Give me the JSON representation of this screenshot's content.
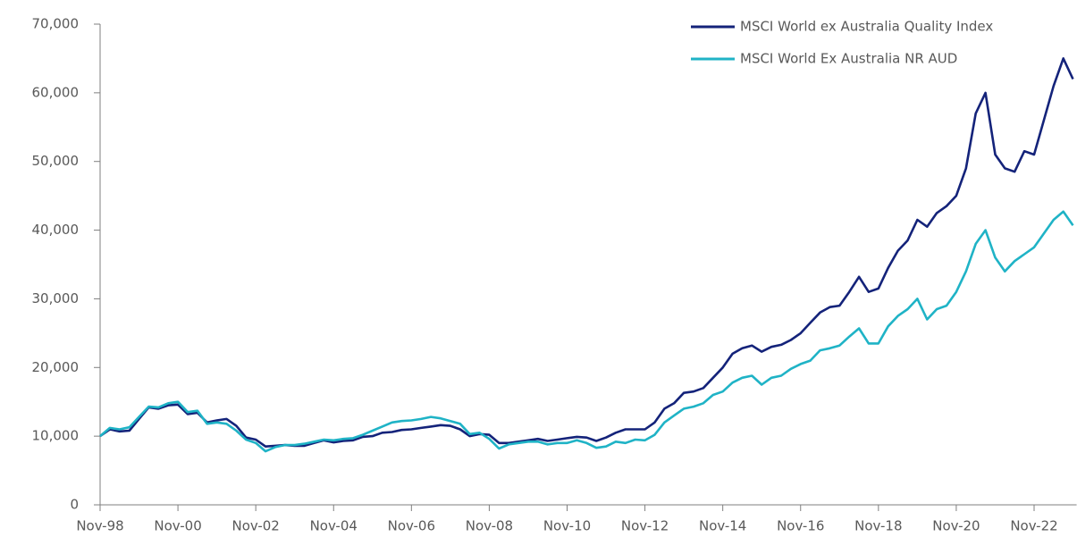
{
  "chart_data": {
    "type": "line",
    "categories": [
      "Nov-98",
      null,
      null,
      null,
      null,
      null,
      null,
      null,
      "Nov-00",
      null,
      null,
      null,
      null,
      null,
      null,
      null,
      "Nov-02",
      null,
      null,
      null,
      null,
      null,
      null,
      null,
      "Nov-04",
      null,
      null,
      null,
      null,
      null,
      null,
      null,
      "Nov-06",
      null,
      null,
      null,
      null,
      null,
      null,
      null,
      "Nov-08",
      null,
      null,
      null,
      null,
      null,
      null,
      null,
      "Nov-10",
      null,
      null,
      null,
      null,
      null,
      null,
      null,
      "Nov-12",
      null,
      null,
      null,
      null,
      null,
      null,
      null,
      "Nov-14",
      null,
      null,
      null,
      null,
      null,
      null,
      null,
      "Nov-16",
      null,
      null,
      null,
      null,
      null,
      null,
      null,
      "Nov-18",
      null,
      null,
      null,
      null,
      null,
      null,
      null,
      "Nov-20",
      null,
      null,
      null,
      null,
      null,
      null,
      null,
      "Nov-22",
      null,
      null,
      null,
      null
    ],
    "series": [
      {
        "name": "MSCI World ex Australia Quality Index",
        "color": "#14237a",
        "values": [
          10000,
          11000,
          10700,
          10800,
          12500,
          14200,
          14000,
          14500,
          14600,
          13200,
          13400,
          12000,
          12300,
          12500,
          11500,
          9800,
          9500,
          8500,
          8600,
          8700,
          8600,
          8600,
          9000,
          9400,
          9100,
          9300,
          9400,
          9900,
          10000,
          10500,
          10600,
          10900,
          11000,
          11200,
          11400,
          11600,
          11500,
          11000,
          10000,
          10300,
          10200,
          9000,
          9000,
          9200,
          9400,
          9600,
          9300,
          9500,
          9700,
          9900,
          9800,
          9300,
          9800,
          10500,
          11000,
          11000,
          11000,
          12000,
          14000,
          14800,
          16300,
          16500,
          17000,
          18500,
          20000,
          22000,
          22800,
          23200,
          22300,
          23000,
          23300,
          24000,
          25000,
          26500,
          28000,
          28800,
          29000,
          31000,
          33200,
          31000,
          31500,
          34500,
          37000,
          38500,
          41500,
          40500,
          42500,
          43500,
          45000,
          49000,
          57000,
          60000,
          51000,
          49000,
          48500,
          51500,
          51000,
          56000,
          61000,
          65000,
          62000
        ]
      },
      {
        "name": "MSCI World Ex Australia NR AUD",
        "color": "#1fb3c6",
        "values": [
          10000,
          11200,
          11000,
          11300,
          12800,
          14300,
          14200,
          14800,
          15000,
          13500,
          13700,
          11800,
          12000,
          11800,
          10800,
          9500,
          9000,
          7800,
          8400,
          8700,
          8700,
          8900,
          9200,
          9500,
          9400,
          9600,
          9700,
          10200,
          10800,
          11400,
          12000,
          12200,
          12300,
          12500,
          12800,
          12600,
          12200,
          11800,
          10300,
          10500,
          9600,
          8200,
          8800,
          9000,
          9200,
          9200,
          8800,
          9000,
          9000,
          9400,
          9000,
          8300,
          8500,
          9200,
          9000,
          9500,
          9400,
          10200,
          12000,
          13000,
          14000,
          14300,
          14800,
          16000,
          16500,
          17800,
          18500,
          18800,
          17500,
          18500,
          18800,
          19800,
          20500,
          21000,
          22500,
          22800,
          23200,
          24500,
          25700,
          23500,
          23500,
          26000,
          27500,
          28500,
          30000,
          27000,
          28500,
          29000,
          31000,
          34000,
          38000,
          40000,
          36000,
          34000,
          35500,
          36500,
          37500,
          39500,
          41500,
          42700,
          40700
        ]
      }
    ],
    "ylim": [
      0,
      70000
    ],
    "yticks": [
      0,
      {
        "value": 10000,
        "label": "10,000"
      },
      {
        "value": 20000,
        "label": "20,000"
      },
      {
        "value": 30000,
        "label": "30,000"
      },
      {
        "value": 40000,
        "label": "40,000"
      },
      {
        "value": 50000,
        "label": "50,000"
      },
      {
        "value": 60000,
        "label": "60,000"
      },
      {
        "value": 70000,
        "label": "70,000"
      }
    ],
    "grid": false,
    "legend": "top-right"
  }
}
